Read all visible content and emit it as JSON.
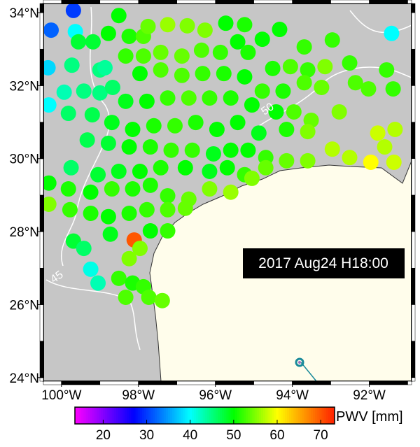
{
  "chart_data": {
    "type": "map-scatter",
    "label_box": "2017 Aug24 H18:00",
    "colorbar_label": "PWV [mm]",
    "xlim": [
      -100.47,
      -90.9
    ],
    "ylim": [
      23.9,
      34.25
    ],
    "xticks": [
      {
        "value": -100,
        "label": "100°W"
      },
      {
        "value": -98,
        "label": "98°W"
      },
      {
        "value": -96,
        "label": "96°W"
      },
      {
        "value": -94,
        "label": "94°W"
      },
      {
        "value": -92,
        "label": "92°W"
      }
    ],
    "yticks": [
      {
        "value": 24,
        "label": "24°N"
      },
      {
        "value": 26,
        "label": "26°N"
      },
      {
        "value": 28,
        "label": "28°N"
      },
      {
        "value": 30,
        "label": "30°N"
      },
      {
        "value": 32,
        "label": "32°N"
      },
      {
        "value": 34,
        "label": "34°N"
      }
    ],
    "clim": [
      13.5,
      73.2
    ],
    "cticks": [
      20,
      30,
      40,
      50,
      60,
      70
    ],
    "colorscale": [
      [
        13.5,
        "#ff00ff"
      ],
      [
        27,
        "#0000ff"
      ],
      [
        40,
        "#00ffff"
      ],
      [
        50,
        "#00ff00"
      ],
      [
        60,
        "#ffff00"
      ],
      [
        73.2,
        "#ff2000"
      ]
    ],
    "contour_labels": [
      "50",
      "45"
    ],
    "points": [
      [
        -99.69,
        34.06,
        30
      ],
      [
        -100.27,
        33.52,
        32
      ],
      [
        -99.64,
        33.48,
        40
      ],
      [
        -100.35,
        32.49,
        38
      ],
      [
        -100.33,
        31.47,
        40
      ],
      [
        -99.93,
        31.82,
        43
      ],
      [
        -99.73,
        32.56,
        45
      ],
      [
        -99.42,
        31.85,
        45
      ],
      [
        -99.0,
        32.43,
        45
      ],
      [
        -98.87,
        32.49,
        44
      ],
      [
        -99.0,
        31.8,
        45
      ],
      [
        -98.67,
        31.95,
        46
      ],
      [
        -99.82,
        31.24,
        46
      ],
      [
        -99.2,
        31.2,
        47
      ],
      [
        -99.56,
        33.2,
        48
      ],
      [
        -99.18,
        33.2,
        48
      ],
      [
        -98.78,
        33.43,
        50
      ],
      [
        -98.51,
        33.92,
        50
      ],
      [
        -98.24,
        33.35,
        51
      ],
      [
        -97.87,
        33.35,
        53
      ],
      [
        -97.75,
        33.62,
        54
      ],
      [
        -97.24,
        33.67,
        56
      ],
      [
        -96.73,
        33.64,
        55
      ],
      [
        -96.27,
        33.52,
        55
      ],
      [
        -95.73,
        33.71,
        50
      ],
      [
        -95.24,
        33.67,
        51
      ],
      [
        -94.78,
        33.27,
        50
      ],
      [
        -94.33,
        33.54,
        50
      ],
      [
        -93.69,
        33.06,
        52
      ],
      [
        -92.96,
        33.25,
        52
      ],
      [
        -91.42,
        33.43,
        40
      ],
      [
        -92.51,
        32.62,
        52
      ],
      [
        -92.36,
        32.08,
        53
      ],
      [
        -91.55,
        32.43,
        52
      ],
      [
        -92.02,
        31.91,
        53
      ],
      [
        -91.38,
        31.91,
        52
      ],
      [
        -98.33,
        32.81,
        52
      ],
      [
        -97.87,
        32.81,
        53
      ],
      [
        -97.42,
        32.91,
        54
      ],
      [
        -96.87,
        32.81,
        54
      ],
      [
        -96.36,
        32.97,
        53
      ],
      [
        -95.87,
        32.91,
        52
      ],
      [
        -95.42,
        33.2,
        50
      ],
      [
        -95.15,
        32.91,
        51
      ],
      [
        -94.51,
        32.47,
        51
      ],
      [
        -94.05,
        32.52,
        53
      ],
      [
        -93.6,
        32.43,
        52
      ],
      [
        -93.15,
        32.52,
        55
      ],
      [
        -97.96,
        32.33,
        50
      ],
      [
        -97.42,
        32.43,
        53
      ],
      [
        -96.87,
        32.28,
        53
      ],
      [
        -96.33,
        32.33,
        52
      ],
      [
        -95.78,
        32.33,
        51
      ],
      [
        -95.24,
        32.24,
        50
      ],
      [
        -94.78,
        31.85,
        52
      ],
      [
        -94.24,
        31.85,
        51
      ],
      [
        -93.69,
        32.08,
        53
      ],
      [
        -93.24,
        31.95,
        54
      ],
      [
        -92.78,
        31.28,
        55
      ],
      [
        -98.33,
        31.57,
        49
      ],
      [
        -97.78,
        31.57,
        50
      ],
      [
        -97.24,
        31.66,
        52
      ],
      [
        -96.69,
        31.66,
        53
      ],
      [
        -96.15,
        31.66,
        52
      ],
      [
        -95.6,
        31.66,
        51
      ],
      [
        -95.05,
        31.47,
        50
      ],
      [
        -94.42,
        31.28,
        50
      ],
      [
        -93.96,
        31.28,
        53
      ],
      [
        -93.51,
        31.05,
        54
      ],
      [
        -93.6,
        30.74,
        55
      ],
      [
        -91.78,
        30.7,
        58
      ],
      [
        -91.33,
        30.8,
        57
      ],
      [
        -91.6,
        30.32,
        57
      ],
      [
        -91.96,
        29.9,
        60
      ],
      [
        -91.36,
        29.9,
        58
      ],
      [
        -98.69,
        30.99,
        49
      ],
      [
        -98.15,
        30.8,
        50
      ],
      [
        -97.6,
        30.9,
        51
      ],
      [
        -97.05,
        30.9,
        52
      ],
      [
        -96.51,
        30.99,
        51
      ],
      [
        -95.96,
        30.8,
        50
      ],
      [
        -95.42,
        30.99,
        50
      ],
      [
        -94.87,
        30.7,
        49
      ],
      [
        -94.15,
        30.8,
        51
      ],
      [
        -99.33,
        30.51,
        47
      ],
      [
        -98.78,
        30.42,
        48
      ],
      [
        -98.24,
        30.32,
        50
      ],
      [
        -97.69,
        30.32,
        51
      ],
      [
        -97.15,
        30.23,
        52
      ],
      [
        -96.6,
        30.23,
        52
      ],
      [
        -96.05,
        30.13,
        49
      ],
      [
        -95.6,
        30.23,
        50
      ],
      [
        -95.15,
        30.23,
        50
      ],
      [
        -94.69,
        30.03,
        52
      ],
      [
        -94.15,
        29.94,
        54
      ],
      [
        -93.6,
        29.94,
        55
      ],
      [
        -92.96,
        30.26,
        57
      ],
      [
        -92.51,
        30.03,
        57
      ],
      [
        -99.75,
        29.75,
        46
      ],
      [
        -99.05,
        29.56,
        48
      ],
      [
        -98.51,
        29.65,
        49
      ],
      [
        -97.96,
        29.65,
        50
      ],
      [
        -97.42,
        29.75,
        51
      ],
      [
        -96.78,
        29.75,
        50
      ],
      [
        -96.15,
        29.65,
        49
      ],
      [
        -95.69,
        29.75,
        50
      ],
      [
        -95.24,
        29.56,
        52
      ],
      [
        -94.69,
        29.75,
        54
      ],
      [
        -95.6,
        29.08,
        56
      ],
      [
        -95.05,
        29.46,
        55
      ],
      [
        -100.33,
        29.33,
        50
      ],
      [
        -99.82,
        29.17,
        51
      ],
      [
        -99.24,
        29.08,
        50
      ],
      [
        -98.69,
        29.17,
        52
      ],
      [
        -98.15,
        29.17,
        51
      ],
      [
        -97.69,
        29.27,
        51
      ],
      [
        -97.24,
        28.98,
        52
      ],
      [
        -96.69,
        28.89,
        54
      ],
      [
        -96.15,
        29.17,
        55
      ],
      [
        -100.33,
        28.75,
        55
      ],
      [
        -99.78,
        28.6,
        52
      ],
      [
        -99.24,
        28.5,
        51
      ],
      [
        -98.78,
        28.41,
        50
      ],
      [
        -98.24,
        28.5,
        51
      ],
      [
        -97.78,
        28.6,
        52
      ],
      [
        -97.24,
        28.6,
        53
      ],
      [
        -96.78,
        28.64,
        54
      ],
      [
        -99.69,
        27.74,
        48
      ],
      [
        -99.42,
        27.54,
        46
      ],
      [
        -99.24,
        26.97,
        41
      ],
      [
        -98.73,
        27.93,
        49
      ],
      [
        -98.11,
        27.77,
        70
      ],
      [
        -97.69,
        28.02,
        50
      ],
      [
        -97.24,
        28.02,
        52
      ],
      [
        -98.24,
        27.26,
        55
      ],
      [
        -97.96,
        27.54,
        55
      ],
      [
        -99.05,
        26.59,
        43
      ],
      [
        -98.51,
        26.72,
        52
      ],
      [
        -98.15,
        26.59,
        51
      ],
      [
        -98.33,
        26.2,
        53
      ],
      [
        -97.87,
        26.49,
        52
      ],
      [
        -97.73,
        26.2,
        53
      ],
      [
        -97.38,
        26.11,
        54
      ]
    ]
  }
}
